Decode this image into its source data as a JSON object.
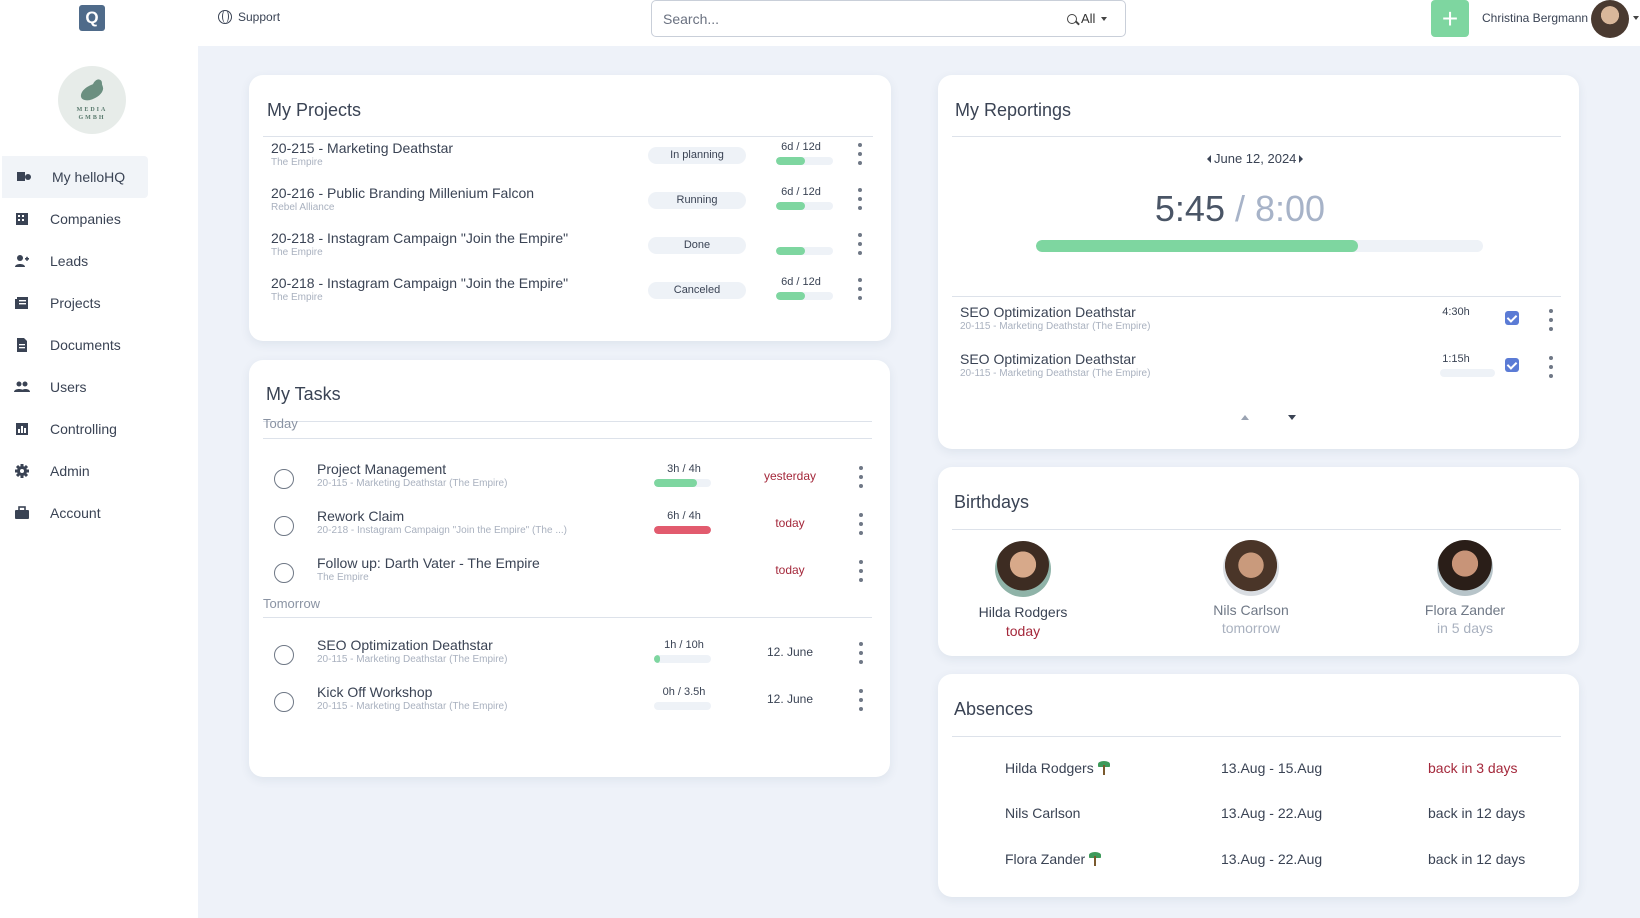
{
  "topbar": {
    "logo_letter": "Q",
    "support_label": "Support",
    "search_placeholder": "Search...",
    "search_filter": "All",
    "user_name": "Christina Bergmann",
    "add_label": "+"
  },
  "company": {
    "name_line1": "MEDIA",
    "name_line2": "GMBH"
  },
  "sidebar": {
    "items": [
      {
        "label": "My helloHQ",
        "icon": "hello-icon"
      },
      {
        "label": "Companies",
        "icon": "building-icon"
      },
      {
        "label": "Leads",
        "icon": "user-plus-icon"
      },
      {
        "label": "Projects",
        "icon": "projects-icon"
      },
      {
        "label": "Documents",
        "icon": "document-icon"
      },
      {
        "label": "Users",
        "icon": "users-icon"
      },
      {
        "label": "Controlling",
        "icon": "chart-icon"
      },
      {
        "label": "Admin",
        "icon": "gear-icon"
      },
      {
        "label": "Account",
        "icon": "briefcase-icon"
      }
    ]
  },
  "projects": {
    "title": "My Projects",
    "rows": [
      {
        "title": "20-215 - Marketing  Deathstar",
        "client": "The Empire",
        "status": "In planning",
        "time": "6d / 12d",
        "progress": 0.5
      },
      {
        "title": "20-216 - Public Branding Millenium Falcon",
        "client": "Rebel Alliance",
        "status": "Running",
        "time": "6d / 12d",
        "progress": 0.5
      },
      {
        "title": "20-218 - Instagram Campaign \"Join the Empire\"",
        "client": "The Empire",
        "status": "Done",
        "time": "",
        "progress": 0.5
      },
      {
        "title": "20-218 - Instagram Campaign \"Join the Empire\"",
        "client": "The Empire",
        "status": "Canceled",
        "time": "6d / 12d",
        "progress": 0.5
      }
    ]
  },
  "tasks": {
    "title": "My Tasks",
    "groups": [
      {
        "label": "Today",
        "rows": [
          {
            "title": "Project Management",
            "sub": "20-115 - Marketing Deathstar (The Empire)",
            "time": "3h / 4h",
            "progress": 0.75,
            "bar": "green",
            "due": "yesterday",
            "due_color": "red"
          },
          {
            "title": "Rework Claim",
            "sub": "20-218 - Instagram Campaign \"Join the Empire\" (The ...)",
            "time": "6h / 4h",
            "progress": 1.0,
            "bar": "red",
            "due": "today",
            "due_color": "red"
          },
          {
            "title": "Follow up: Darth Vater - The Empire",
            "sub": "The Empire",
            "time": "",
            "progress": null,
            "bar": "",
            "due": "today",
            "due_color": "red"
          }
        ]
      },
      {
        "label": "Tomorrow",
        "rows": [
          {
            "title": "SEO Optimization Deathstar",
            "sub": "20-115 - Marketing Deathstar (The Empire)",
            "time": "1h / 10h",
            "progress": 0.1,
            "bar": "green",
            "due": "12. June",
            "due_color": "dark"
          },
          {
            "title": "Kick Off Workshop",
            "sub": "20-115 - Marketing Deathstar (The Empire)",
            "time": "0h / 3.5h",
            "progress": 0,
            "bar": "green",
            "due": "12. June",
            "due_color": "dark"
          }
        ]
      }
    ]
  },
  "reportings": {
    "title": "My Reportings",
    "date": "June 12, 2024",
    "logged": "5:45",
    "target": "8:00",
    "progress": 0.72,
    "rows": [
      {
        "title": "SEO Optimization Deathstar",
        "sub": "20-115 - Marketing Deathstar (The Empire)",
        "hours": "4:30h",
        "bar": null
      },
      {
        "title": "SEO Optimization Deathstar",
        "sub": "20-115 - Marketing Deathstar (The Empire)",
        "hours": "1:15h",
        "bar": 0
      }
    ]
  },
  "birthdays": {
    "title": "Birthdays",
    "people": [
      {
        "name": "Hilda Rodgers",
        "when": "today",
        "highlight": true
      },
      {
        "name": "Nils Carlson",
        "when": "tomorrow",
        "highlight": false
      },
      {
        "name": "Flora Zander",
        "when": "in 5 days",
        "highlight": false
      }
    ]
  },
  "absences": {
    "title": "Absences",
    "rows": [
      {
        "name": "Hilda Rodgers",
        "vacation": true,
        "range": "13.Aug - 15.Aug",
        "back": "back in 3 days",
        "soon": true
      },
      {
        "name": "Nils Carlson",
        "vacation": false,
        "range": "13.Aug - 22.Aug",
        "back": "back in 12 days",
        "soon": false
      },
      {
        "name": "Flora Zander",
        "vacation": true,
        "range": "13.Aug - 22.Aug",
        "back": "back in 12 days",
        "soon": false
      }
    ]
  },
  "colors": {
    "accent_green": "#7ed6a0",
    "alert_red": "#e25b6e",
    "due_red": "#a4283b",
    "checkbox_blue": "#5b7bd5",
    "page_bg": "#eef2f9"
  }
}
